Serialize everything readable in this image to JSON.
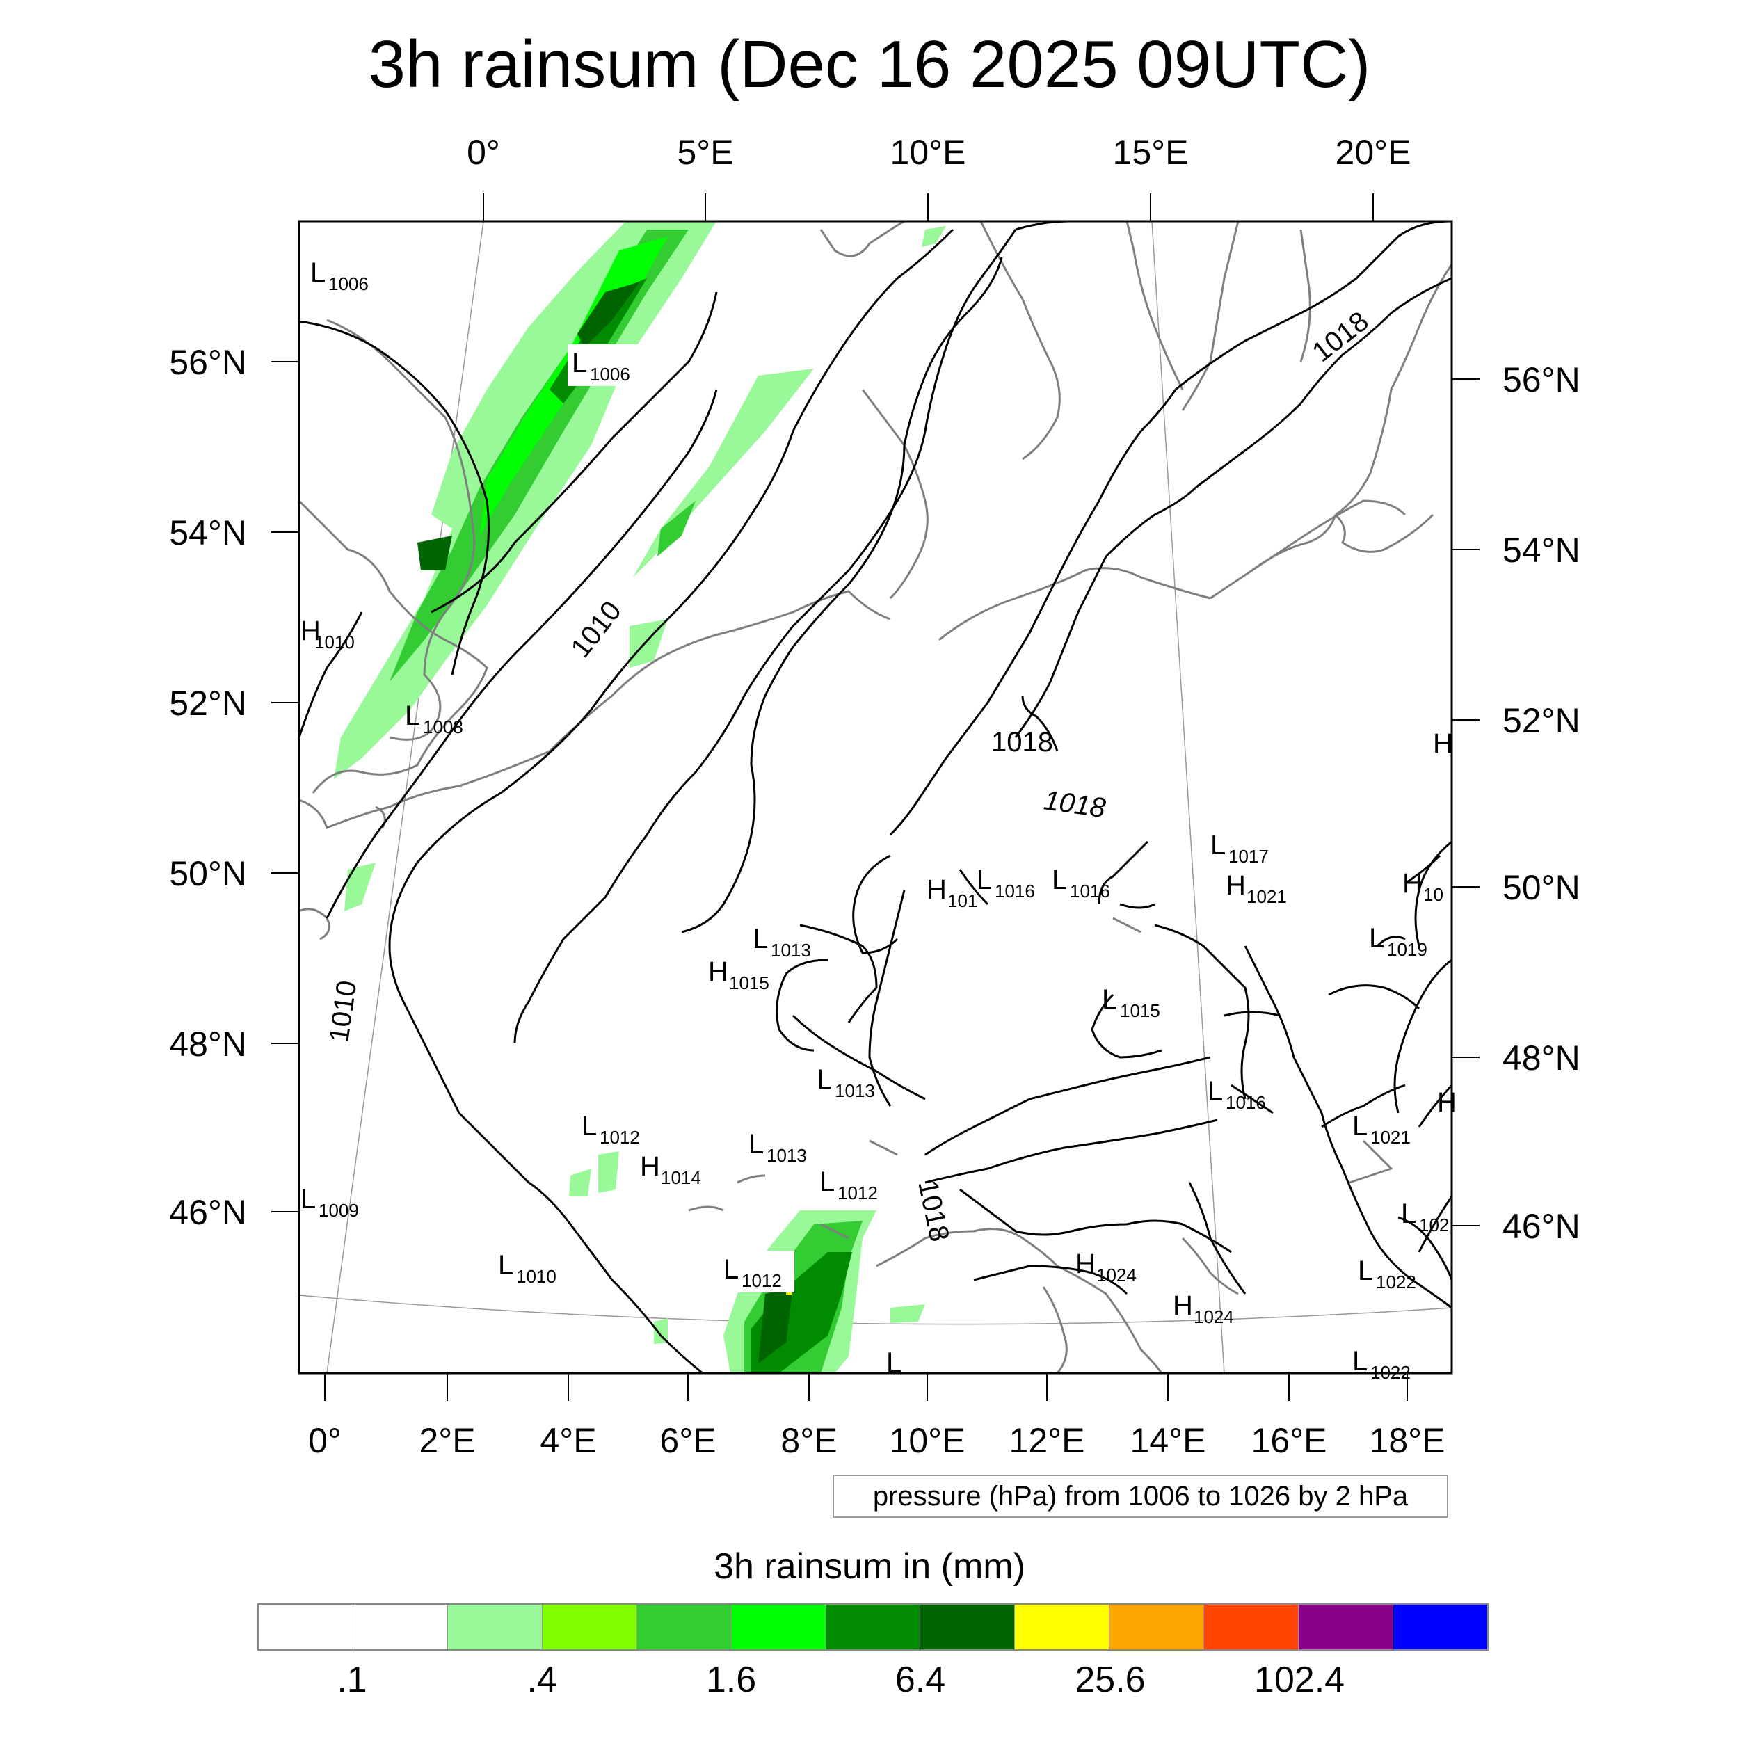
{
  "title": "3h rainsum (Dec 16 2025 09UTC)",
  "top_lon_labels": [
    "0°",
    "5°E",
    "10°E",
    "15°E",
    "20°E"
  ],
  "bottom_lon_labels": [
    "0°",
    "2°E",
    "4°E",
    "6°E",
    "8°E",
    "10°E",
    "12°E",
    "14°E",
    "16°E",
    "18°E"
  ],
  "left_lat_labels": [
    "56°N",
    "54°N",
    "52°N",
    "50°N",
    "48°N",
    "46°N"
  ],
  "right_lat_labels": [
    "56°N",
    "54°N",
    "52°N",
    "50°N",
    "48°N",
    "46°N"
  ],
  "pressure_note": "pressure (hPa) from 1006 to 1026 by 2 hPa",
  "isobar_labels": [
    "1010",
    "1010",
    "1018",
    "1018",
    "1018",
    "1018"
  ],
  "pressure_centers": [
    {
      "t": "L",
      "v": "1006"
    },
    {
      "t": "L",
      "v": "1006"
    },
    {
      "t": "H",
      "v": "1010"
    },
    {
      "t": "L",
      "v": "1008"
    },
    {
      "t": "L",
      "v": "1009"
    },
    {
      "t": "L",
      "v": "1010"
    },
    {
      "t": "L",
      "v": "1012"
    },
    {
      "t": "H",
      "v": "1014"
    },
    {
      "t": "L",
      "v": "1013"
    },
    {
      "t": "L",
      "v": "1012"
    },
    {
      "t": "L",
      "v": "1012"
    },
    {
      "t": "L",
      "v": "1013"
    },
    {
      "t": "H",
      "v": "1015"
    },
    {
      "t": "L",
      "v": "1013"
    },
    {
      "t": "H",
      "v": "101"
    },
    {
      "t": "L",
      "v": "1016"
    },
    {
      "t": "L",
      "v": "1016"
    },
    {
      "t": "L",
      "v": "1017"
    },
    {
      "t": "H",
      "v": "1021"
    },
    {
      "t": "L",
      "v": "1015"
    },
    {
      "t": "L",
      "v": "1016"
    },
    {
      "t": "H",
      "v": "1024"
    },
    {
      "t": "H",
      "v": "1024"
    },
    {
      "t": "L",
      "v": "1019"
    },
    {
      "t": "H",
      "v": "10"
    },
    {
      "t": "L",
      "v": "1021"
    },
    {
      "t": "L",
      "v": "102"
    },
    {
      "t": "L",
      "v": "1022"
    },
    {
      "t": "L",
      "v": "1022"
    },
    {
      "t": "H",
      "v": ""
    },
    {
      "t": "H",
      "v": ""
    },
    {
      "t": "L",
      "v": ""
    }
  ],
  "colorbar": {
    "title": "3h rainsum in (mm)",
    "colors": [
      "#ffffff",
      "#ffffff",
      "#99f999",
      "#7fff00",
      "#33cc33",
      "#00ff00",
      "#008b00",
      "#006400",
      "#ffff00",
      "#ffa500",
      "#ff4500",
      "#8b008b",
      "#0000ff"
    ],
    "tick_labels": [
      ".1",
      ".4",
      "1.6",
      "6.4",
      "25.6",
      "102.4"
    ]
  },
  "colors": {
    "land_outline": "#7f7f7f",
    "isobar": "#000000",
    "gridline": "#999999"
  }
}
